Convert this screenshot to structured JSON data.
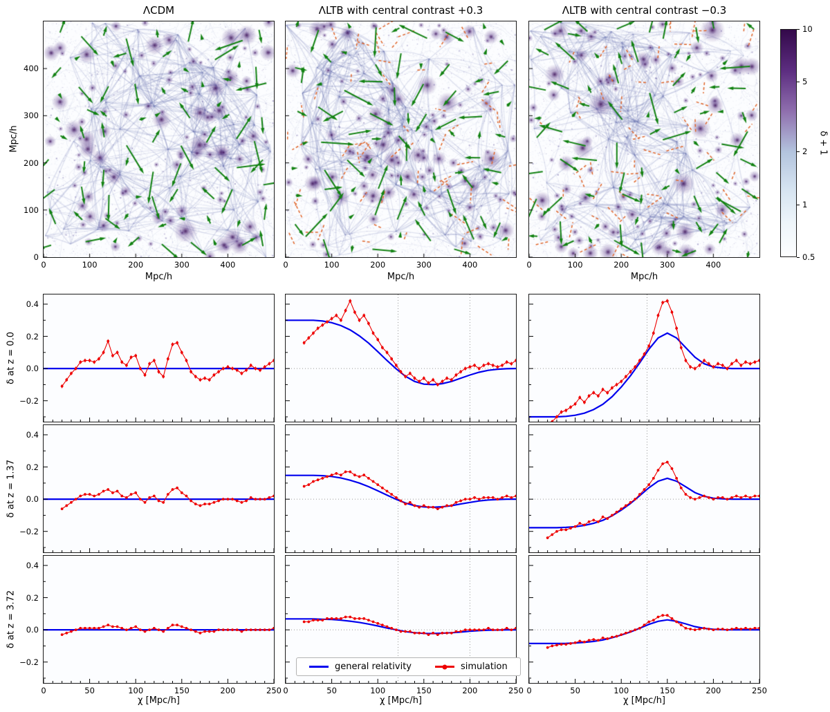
{
  "figure": {
    "top_row": {
      "panels": [
        {
          "title": "ΛCDM"
        },
        {
          "title": "ΛLTB with central contrast +0.3"
        },
        {
          "title": "ΛLTB with central contrast −0.3"
        }
      ],
      "xlabel": "Mpc/h",
      "ylabel": "Mpc/h",
      "x_ticks": [
        0,
        100,
        200,
        300,
        400
      ],
      "y_ticks": [
        0,
        100,
        200,
        300,
        400
      ],
      "axis_range": [
        0,
        500
      ],
      "colorbar": {
        "label": "δ + 1",
        "scale": "log",
        "ticks": [
          10,
          5,
          2,
          1,
          0.5
        ],
        "range": [
          0.5,
          10
        ],
        "gradient": [
          "#33094a",
          "#5c2d80",
          "#8f6fae",
          "#b3c4de",
          "#d5e3f0",
          "#eef5fa",
          "#fdfeff"
        ],
        "gradient_pos": [
          0,
          18,
          36,
          54,
          70,
          85,
          100
        ]
      },
      "quiver_primary_color": "#128212",
      "quiver_secondary_color": "#e06428"
    },
    "grid": {
      "row_labels": [
        "δ at z = 0.0",
        "δ at z = 1.37",
        "δ at z = 3.72"
      ],
      "xlabel": "χ [Mpc/h]",
      "x_ticks": [
        0,
        50,
        100,
        150,
        200,
        250
      ],
      "y_ticks": [
        0.4,
        0.2,
        0.0,
        -0.2
      ],
      "xlim": [
        0,
        250
      ],
      "ylim": [
        -0.33,
        0.46
      ],
      "hline": 0,
      "legend": [
        {
          "label": "general relativity",
          "color": "#0000ee"
        },
        {
          "label": "simulation",
          "color": "#ee0000"
        }
      ],
      "x_gr": [
        0,
        10,
        20,
        30,
        40,
        50,
        60,
        70,
        80,
        90,
        100,
        110,
        120,
        130,
        140,
        150,
        160,
        170,
        180,
        190,
        200,
        210,
        220,
        230,
        240,
        250
      ],
      "x_sim": [
        20,
        25,
        30,
        35,
        40,
        45,
        50,
        55,
        60,
        65,
        70,
        75,
        80,
        85,
        90,
        95,
        100,
        105,
        110,
        115,
        120,
        125,
        130,
        135,
        140,
        145,
        150,
        155,
        160,
        165,
        170,
        175,
        180,
        185,
        190,
        195,
        200,
        205,
        210,
        215,
        220,
        225,
        230,
        235,
        240,
        245,
        250
      ]
    }
  },
  "chart_data": [
    {
      "type": "heatmap",
      "name": "ΛCDM matter density slice",
      "title": "ΛCDM",
      "xlabel": "Mpc/h",
      "ylabel": "Mpc/h",
      "xlim": [
        0,
        500
      ],
      "ylim": [
        0,
        500
      ],
      "x_ticks": [
        0,
        100,
        200,
        300,
        400
      ],
      "y_ticks": [
        0,
        100,
        200,
        300,
        400
      ],
      "colorbar_label": "δ + 1",
      "colorbar_ticks": [
        10,
        5,
        2,
        1,
        0.5
      ],
      "overlays": [
        "green velocity quiver arrows"
      ]
    },
    {
      "type": "heatmap",
      "name": "ΛLTB +0.3 matter density slice",
      "title": "ΛLTB with central contrast +0.3",
      "xlabel": "Mpc/h",
      "ylabel": "Mpc/h",
      "xlim": [
        0,
        500
      ],
      "ylim": [
        0,
        500
      ],
      "x_ticks": [
        0,
        100,
        200,
        300,
        400
      ],
      "y_ticks": [
        0,
        100,
        200,
        300,
        400
      ],
      "colorbar_label": "δ + 1",
      "colorbar_ticks": [
        10,
        5,
        2,
        1,
        0.5
      ],
      "overlays": [
        "green velocity quiver arrows",
        "orange dashed arrows"
      ]
    },
    {
      "type": "heatmap",
      "name": "ΛLTB −0.3 matter density slice",
      "title": "ΛLTB with central contrast −0.3",
      "xlabel": "Mpc/h",
      "ylabel": "Mpc/h",
      "xlim": [
        0,
        500
      ],
      "ylim": [
        0,
        500
      ],
      "x_ticks": [
        0,
        100,
        200,
        300,
        400
      ],
      "y_ticks": [
        0,
        100,
        200,
        300,
        400
      ],
      "colorbar_label": "δ + 1",
      "colorbar_ticks": [
        10,
        5,
        2,
        1,
        0.5
      ],
      "overlays": [
        "green velocity quiver arrows",
        "orange dashed arrows"
      ]
    },
    {
      "type": "line",
      "name": "ΛCDM, z = 0.0",
      "row": 0,
      "col": 0,
      "err": 0.012,
      "vlines": [],
      "gr": [
        0,
        0,
        0,
        0,
        0,
        0,
        0,
        0,
        0,
        0,
        0,
        0,
        0,
        0,
        0,
        0,
        0,
        0,
        0,
        0,
        0,
        0,
        0,
        0,
        0,
        0
      ],
      "sim": [
        -0.11,
        -0.07,
        -0.03,
        0.0,
        0.04,
        0.05,
        0.05,
        0.04,
        0.06,
        0.1,
        0.17,
        0.08,
        0.1,
        0.04,
        0.02,
        0.07,
        0.08,
        0.0,
        -0.04,
        0.03,
        0.05,
        -0.02,
        -0.05,
        0.06,
        0.15,
        0.16,
        0.1,
        0.05,
        -0.02,
        -0.05,
        -0.07,
        -0.06,
        -0.07,
        -0.04,
        -0.02,
        0.0,
        0.01,
        0.0,
        -0.01,
        -0.03,
        -0.01,
        0.02,
        0.0,
        -0.01,
        0.01,
        0.03,
        0.05
      ]
    },
    {
      "type": "line",
      "name": "ΛLTB +0.3, z = 0.0",
      "row": 0,
      "col": 1,
      "err": 0.012,
      "vlines": [
        122,
        200
      ],
      "gr": [
        0.3,
        0.3,
        0.3,
        0.3,
        0.295,
        0.285,
        0.267,
        0.24,
        0.203,
        0.158,
        0.105,
        0.05,
        -0.002,
        -0.048,
        -0.08,
        -0.097,
        -0.1,
        -0.094,
        -0.08,
        -0.06,
        -0.04,
        -0.023,
        -0.011,
        -0.004,
        -0.001,
        0.0
      ],
      "sim": [
        0.16,
        0.19,
        0.22,
        0.25,
        0.27,
        0.29,
        0.31,
        0.33,
        0.3,
        0.36,
        0.42,
        0.35,
        0.3,
        0.33,
        0.28,
        0.22,
        0.18,
        0.13,
        0.1,
        0.06,
        0.02,
        -0.02,
        -0.05,
        -0.03,
        -0.06,
        -0.08,
        -0.06,
        -0.09,
        -0.07,
        -0.1,
        -0.08,
        -0.06,
        -0.07,
        -0.04,
        -0.02,
        0.0,
        0.01,
        0.02,
        0.0,
        0.02,
        0.03,
        0.02,
        0.01,
        0.02,
        0.04,
        0.03,
        0.05
      ]
    },
    {
      "type": "line",
      "name": "ΛLTB −0.3, z = 0.0",
      "row": 0,
      "col": 2,
      "err": 0.012,
      "vlines": [
        128
      ],
      "gr": [
        -0.3,
        -0.3,
        -0.3,
        -0.3,
        -0.297,
        -0.29,
        -0.277,
        -0.255,
        -0.222,
        -0.175,
        -0.115,
        -0.045,
        0.035,
        0.12,
        0.19,
        0.22,
        0.19,
        0.13,
        0.07,
        0.03,
        0.01,
        0.003,
        0.0,
        0.0,
        0.0,
        0.0
      ],
      "sim": [
        -0.36,
        -0.33,
        -0.3,
        -0.27,
        -0.26,
        -0.24,
        -0.22,
        -0.18,
        -0.21,
        -0.17,
        -0.15,
        -0.17,
        -0.13,
        -0.15,
        -0.12,
        -0.1,
        -0.08,
        -0.05,
        -0.02,
        0.01,
        0.05,
        0.09,
        0.14,
        0.22,
        0.33,
        0.41,
        0.42,
        0.35,
        0.25,
        0.13,
        0.05,
        0.01,
        0.0,
        0.02,
        0.05,
        0.03,
        0.01,
        0.03,
        0.02,
        0.0,
        0.03,
        0.05,
        0.02,
        0.04,
        0.03,
        0.04,
        0.05
      ]
    },
    {
      "type": "line",
      "name": "ΛCDM, z = 1.37",
      "row": 1,
      "col": 0,
      "err": 0.008,
      "vlines": [],
      "gr": [
        0,
        0,
        0,
        0,
        0,
        0,
        0,
        0,
        0,
        0,
        0,
        0,
        0,
        0,
        0,
        0,
        0,
        0,
        0,
        0,
        0,
        0,
        0,
        0,
        0,
        0
      ],
      "sim": [
        -0.06,
        -0.04,
        -0.02,
        0.0,
        0.02,
        0.03,
        0.03,
        0.02,
        0.03,
        0.05,
        0.06,
        0.04,
        0.05,
        0.02,
        0.01,
        0.03,
        0.04,
        0.0,
        -0.02,
        0.01,
        0.02,
        -0.01,
        -0.02,
        0.03,
        0.06,
        0.07,
        0.04,
        0.02,
        -0.01,
        -0.03,
        -0.04,
        -0.03,
        -0.03,
        -0.02,
        -0.01,
        0.0,
        0.0,
        0.0,
        -0.01,
        -0.02,
        -0.01,
        0.01,
        0.0,
        0.0,
        0.0,
        0.01,
        0.02
      ]
    },
    {
      "type": "line",
      "name": "ΛLTB +0.3, z = 1.37",
      "row": 1,
      "col": 1,
      "err": 0.008,
      "vlines": [
        122,
        200
      ],
      "gr": [
        0.148,
        0.148,
        0.148,
        0.148,
        0.146,
        0.141,
        0.132,
        0.118,
        0.1,
        0.078,
        0.052,
        0.025,
        -0.001,
        -0.024,
        -0.04,
        -0.048,
        -0.05,
        -0.047,
        -0.04,
        -0.03,
        -0.02,
        -0.011,
        -0.005,
        -0.002,
        0.0,
        0.0
      ],
      "sim": [
        0.08,
        0.09,
        0.11,
        0.12,
        0.13,
        0.14,
        0.15,
        0.16,
        0.15,
        0.17,
        0.17,
        0.15,
        0.14,
        0.15,
        0.13,
        0.11,
        0.09,
        0.07,
        0.05,
        0.03,
        0.01,
        -0.01,
        -0.03,
        -0.02,
        -0.04,
        -0.05,
        -0.04,
        -0.05,
        -0.05,
        -0.06,
        -0.05,
        -0.04,
        -0.04,
        -0.02,
        -0.01,
        0.0,
        0.0,
        0.01,
        0.0,
        0.01,
        0.01,
        0.01,
        0.0,
        0.01,
        0.02,
        0.01,
        0.02
      ]
    },
    {
      "type": "line",
      "name": "ΛLTB −0.3, z = 1.37",
      "row": 1,
      "col": 2,
      "err": 0.008,
      "vlines": [
        128
      ],
      "gr": [
        -0.177,
        -0.177,
        -0.177,
        -0.177,
        -0.175,
        -0.171,
        -0.163,
        -0.15,
        -0.131,
        -0.103,
        -0.068,
        -0.027,
        0.021,
        0.071,
        0.112,
        0.13,
        0.112,
        0.077,
        0.041,
        0.018,
        0.006,
        0.002,
        0.0,
        0.0,
        0.0,
        0.0
      ],
      "sim": [
        -0.24,
        -0.22,
        -0.2,
        -0.19,
        -0.19,
        -0.18,
        -0.17,
        -0.15,
        -0.16,
        -0.14,
        -0.13,
        -0.14,
        -0.11,
        -0.12,
        -0.1,
        -0.08,
        -0.06,
        -0.04,
        -0.02,
        0.0,
        0.03,
        0.06,
        0.09,
        0.13,
        0.18,
        0.22,
        0.23,
        0.19,
        0.13,
        0.07,
        0.03,
        0.01,
        0.0,
        0.01,
        0.02,
        0.01,
        0.0,
        0.01,
        0.01,
        0.0,
        0.01,
        0.02,
        0.01,
        0.02,
        0.01,
        0.02,
        0.02
      ]
    },
    {
      "type": "line",
      "name": "ΛCDM, z = 3.72",
      "row": 2,
      "col": 0,
      "err": 0.005,
      "vlines": [],
      "gr": [
        0,
        0,
        0,
        0,
        0,
        0,
        0,
        0,
        0,
        0,
        0,
        0,
        0,
        0,
        0,
        0,
        0,
        0,
        0,
        0,
        0,
        0,
        0,
        0,
        0,
        0
      ],
      "sim": [
        -0.03,
        -0.02,
        -0.01,
        0.0,
        0.01,
        0.01,
        0.01,
        0.01,
        0.01,
        0.02,
        0.03,
        0.02,
        0.02,
        0.01,
        0.0,
        0.01,
        0.02,
        0.0,
        -0.01,
        0.0,
        0.01,
        0.0,
        -0.01,
        0.01,
        0.03,
        0.03,
        0.02,
        0.01,
        0.0,
        -0.01,
        -0.02,
        -0.01,
        -0.01,
        -0.01,
        0.0,
        0.0,
        0.0,
        0.0,
        0.0,
        -0.01,
        0.0,
        0.0,
        0.0,
        0.0,
        0.0,
        0.0,
        0.01
      ]
    },
    {
      "type": "line",
      "name": "ΛLTB +0.3, z = 3.72",
      "row": 2,
      "col": 1,
      "err": 0.005,
      "vlines": [
        122,
        200
      ],
      "gr": [
        0.068,
        0.068,
        0.068,
        0.068,
        0.066,
        0.064,
        0.06,
        0.054,
        0.046,
        0.036,
        0.024,
        0.011,
        0.0,
        -0.011,
        -0.018,
        -0.022,
        -0.023,
        -0.021,
        -0.018,
        -0.014,
        -0.009,
        -0.005,
        -0.002,
        -0.001,
        0.0,
        0.0
      ],
      "sim": [
        0.05,
        0.05,
        0.06,
        0.06,
        0.06,
        0.07,
        0.07,
        0.07,
        0.07,
        0.08,
        0.08,
        0.07,
        0.07,
        0.07,
        0.06,
        0.05,
        0.04,
        0.03,
        0.02,
        0.01,
        0.0,
        -0.01,
        -0.01,
        -0.01,
        -0.02,
        -0.02,
        -0.02,
        -0.03,
        -0.02,
        -0.03,
        -0.02,
        -0.02,
        -0.02,
        -0.01,
        -0.01,
        0.0,
        0.0,
        0.0,
        0.0,
        0.0,
        0.01,
        0.0,
        0.0,
        0.0,
        0.01,
        0.0,
        0.01
      ]
    },
    {
      "type": "line",
      "name": "ΛLTB −0.3, z = 3.72",
      "row": 2,
      "col": 2,
      "err": 0.005,
      "vlines": [
        128
      ],
      "gr": [
        -0.085,
        -0.085,
        -0.085,
        -0.085,
        -0.084,
        -0.082,
        -0.078,
        -0.072,
        -0.063,
        -0.049,
        -0.032,
        -0.013,
        0.01,
        0.034,
        0.053,
        0.062,
        0.053,
        0.037,
        0.02,
        0.009,
        0.003,
        0.001,
        0.0,
        0.0,
        0.0,
        0.0
      ],
      "sim": [
        -0.11,
        -0.1,
        -0.095,
        -0.09,
        -0.09,
        -0.085,
        -0.08,
        -0.07,
        -0.075,
        -0.065,
        -0.06,
        -0.065,
        -0.05,
        -0.055,
        -0.045,
        -0.04,
        -0.03,
        -0.02,
        -0.01,
        0.0,
        0.01,
        0.03,
        0.05,
        0.06,
        0.08,
        0.09,
        0.09,
        0.07,
        0.05,
        0.03,
        0.01,
        0.005,
        0.0,
        0.005,
        0.01,
        0.005,
        0.0,
        0.005,
        0.005,
        0.0,
        0.005,
        0.01,
        0.005,
        0.01,
        0.005,
        0.01,
        0.01
      ]
    }
  ]
}
